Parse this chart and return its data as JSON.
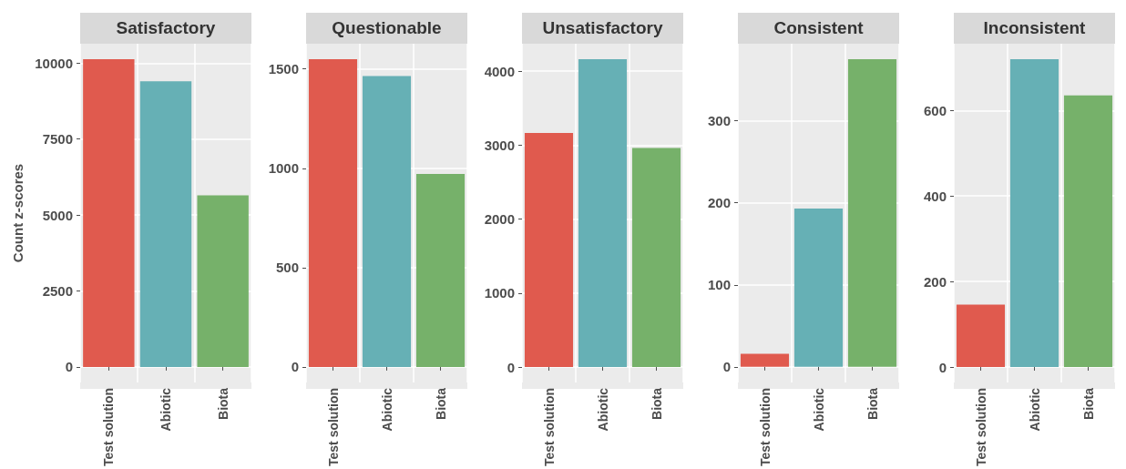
{
  "chart_data": [
    {
      "type": "bar",
      "title": "Satisfactory",
      "ylabel": "Count z-scores",
      "categories": [
        "Test solution",
        "Abiotic",
        "Biota"
      ],
      "values": [
        10130,
        9400,
        5650
      ],
      "colors": [
        "#e05a4e",
        "#66b0b5",
        "#76b16a"
      ],
      "ylim": [
        -510,
        10640
      ],
      "yticks": [
        0,
        2500,
        5000,
        7500,
        10000
      ],
      "grid": true
    },
    {
      "type": "bar",
      "title": "Questionable",
      "categories": [
        "Test solution",
        "Abiotic",
        "Biota"
      ],
      "values": [
        1549,
        1464,
        972
      ],
      "colors": [
        "#e05a4e",
        "#66b0b5",
        "#76b16a"
      ],
      "ylim": [
        -78,
        1627
      ],
      "yticks": [
        0,
        500,
        1000,
        1500
      ],
      "grid": true
    },
    {
      "type": "bar",
      "title": "Unsatisfactory",
      "categories": [
        "Test solution",
        "Abiotic",
        "Biota"
      ],
      "values": [
        3166,
        4164,
        2962
      ],
      "colors": [
        "#e05a4e",
        "#66b0b5",
        "#76b16a"
      ],
      "ylim": [
        -208,
        4372
      ],
      "yticks": [
        0,
        1000,
        2000,
        3000,
        4000
      ],
      "grid": true
    },
    {
      "type": "bar",
      "title": "Consistent",
      "categories": [
        "Test solution",
        "Abiotic",
        "Biota"
      ],
      "values": [
        16,
        193,
        375
      ],
      "colors": [
        "#e05a4e",
        "#66b0b5",
        "#76b16a"
      ],
      "ylim": [
        -19,
        394
      ],
      "yticks": [
        0,
        100,
        200,
        300
      ],
      "grid": true
    },
    {
      "type": "bar",
      "title": "Inconsistent",
      "categories": [
        "Test solution",
        "Abiotic",
        "Biota"
      ],
      "values": [
        146,
        720,
        635
      ],
      "colors": [
        "#e05a4e",
        "#66b0b5",
        "#76b16a"
      ],
      "ylim": [
        -36,
        756
      ],
      "yticks": [
        0,
        200,
        400,
        600
      ],
      "grid": true
    }
  ]
}
